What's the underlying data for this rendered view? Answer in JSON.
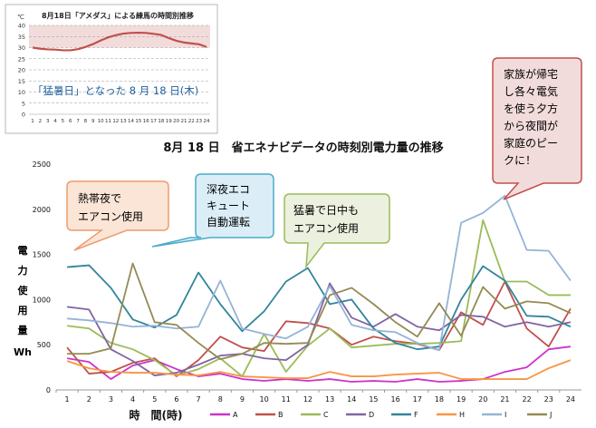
{
  "inset": {
    "title": "8月18日「アメダス」による練馬の時間別推移",
    "unit": "℃",
    "banner": "「猛暑日」となった 8 月 18 日(木)",
    "chart_data": {
      "type": "line",
      "x": [
        1,
        2,
        3,
        4,
        5,
        6,
        7,
        8,
        9,
        10,
        11,
        12,
        13,
        14,
        15,
        16,
        17,
        18,
        19,
        20,
        21,
        22,
        23,
        24
      ],
      "series": [
        {
          "name": "",
          "color": "#c0504d",
          "values": [
            30.0,
            29.5,
            29.2,
            29.1,
            28.8,
            28.8,
            29.3,
            30.3,
            31.6,
            33.2,
            34.6,
            35.6,
            36.3,
            36.6,
            36.7,
            36.6,
            36.2,
            35.7,
            34.3,
            33.1,
            32.3,
            31.9,
            31.5,
            30.3
          ]
        }
      ],
      "ylim": [
        0,
        40
      ],
      "y_ticks": [
        "0",
        "5",
        "10",
        "15",
        "20",
        "25",
        "30",
        "35",
        "40"
      ],
      "x_ticks": [
        "1",
        "2",
        "3",
        "4",
        "5",
        "6",
        "7",
        "8",
        "9",
        "10",
        "11",
        "12",
        "13",
        "14",
        "15",
        "16",
        "17",
        "18",
        "19",
        "20",
        "21",
        "22",
        "23",
        "24"
      ],
      "grid": true,
      "highlight_band": [
        30,
        40
      ]
    }
  },
  "main_title": "8月 18 日　省エネナビデータの時刻別電力量の推移",
  "y_label_chars": [
    "電",
    "力",
    "使",
    "用",
    "量"
  ],
  "y_unit": "Wh",
  "x_label": "時　間(時)",
  "callouts": [
    {
      "id": "c1",
      "lines": [
        "熱帯夜で",
        "エアコン使用"
      ],
      "fill": "#fbe5d6",
      "stroke": "#ed9c6d"
    },
    {
      "id": "c2",
      "lines": [
        "深夜エコ",
        "キュート",
        "自動運転"
      ],
      "fill": "#dbeef8",
      "stroke": "#4bacc6"
    },
    {
      "id": "c3",
      "lines": [
        "猛暑で日中も",
        "エアコン使用"
      ],
      "fill": "#ebf1de",
      "stroke": "#9bbb59"
    },
    {
      "id": "c4",
      "lines": [
        "家族が帰宅",
        "し各々電気",
        "を使う夕方",
        "から夜間が",
        "家庭のピー",
        "クに！"
      ],
      "fill": "#f2dcdb",
      "stroke": "#c0504d"
    }
  ],
  "chart_data": {
    "type": "line",
    "x": [
      1,
      2,
      3,
      4,
      5,
      6,
      7,
      8,
      9,
      10,
      11,
      12,
      13,
      14,
      15,
      16,
      17,
      18,
      19,
      20,
      21,
      22,
      23,
      24
    ],
    "x_ticks": [
      "1",
      "2",
      "3",
      "4",
      "5",
      "6",
      "7",
      "8",
      "9",
      "10",
      "11",
      "12",
      "13",
      "14",
      "15",
      "16",
      "17",
      "18",
      "19",
      "20",
      "21",
      "22",
      "23",
      "24"
    ],
    "ylim": [
      0,
      2500
    ],
    "y_ticks": [
      "0",
      "500",
      "1000",
      "1500",
      "2000",
      "2500"
    ],
    "grid": false,
    "legend_position": "bottom",
    "series": [
      {
        "name": "A",
        "color": "#cc33cc",
        "values": [
          350,
          310,
          120,
          270,
          330,
          230,
          150,
          180,
          120,
          100,
          120,
          100,
          120,
          90,
          100,
          90,
          120,
          90,
          100,
          120,
          200,
          250,
          450,
          480
        ]
      },
      {
        "name": "B",
        "color": "#c0504d",
        "values": [
          470,
          180,
          200,
          300,
          350,
          150,
          330,
          590,
          470,
          430,
          760,
          740,
          680,
          500,
          590,
          540,
          510,
          440,
          860,
          720,
          1200,
          680,
          480,
          900
        ]
      },
      {
        "name": "C",
        "color": "#9bbb59",
        "values": [
          710,
          680,
          520,
          450,
          330,
          160,
          230,
          350,
          150,
          620,
          200,
          490,
          680,
          470,
          490,
          510,
          510,
          520,
          540,
          1880,
          1200,
          1200,
          1050,
          1050
        ]
      },
      {
        "name": "D",
        "color": "#8064a2",
        "values": [
          920,
          890,
          450,
          320,
          160,
          190,
          280,
          380,
          400,
          350,
          330,
          500,
          1180,
          800,
          700,
          840,
          700,
          660,
          830,
          810,
          700,
          750,
          700,
          750
        ]
      },
      {
        "name": "F",
        "color": "#31859c",
        "values": [
          1360,
          1380,
          1130,
          780,
          690,
          830,
          1300,
          950,
          650,
          870,
          1200,
          1350,
          950,
          1000,
          680,
          520,
          450,
          480,
          1000,
          1370,
          1210,
          820,
          810,
          700
        ]
      },
      {
        "name": "H",
        "color": "#f79646",
        "values": [
          320,
          240,
          200,
          190,
          190,
          170,
          160,
          200,
          150,
          140,
          130,
          130,
          200,
          150,
          150,
          170,
          180,
          190,
          120,
          120,
          120,
          120,
          240,
          330
        ]
      },
      {
        "name": "I",
        "color": "#95b3d7",
        "values": [
          790,
          770,
          740,
          700,
          710,
          680,
          700,
          1210,
          680,
          620,
          570,
          700,
          1150,
          720,
          660,
          640,
          520,
          440,
          1850,
          1960,
          2150,
          1550,
          1540,
          1210
        ]
      },
      {
        "name": "J",
        "color": "#948a54",
        "values": [
          400,
          400,
          460,
          1400,
          750,
          720,
          520,
          340,
          400,
          520,
          510,
          520,
          1050,
          1130,
          950,
          750,
          590,
          960,
          600,
          1140,
          900,
          980,
          960,
          850
        ]
      }
    ]
  }
}
